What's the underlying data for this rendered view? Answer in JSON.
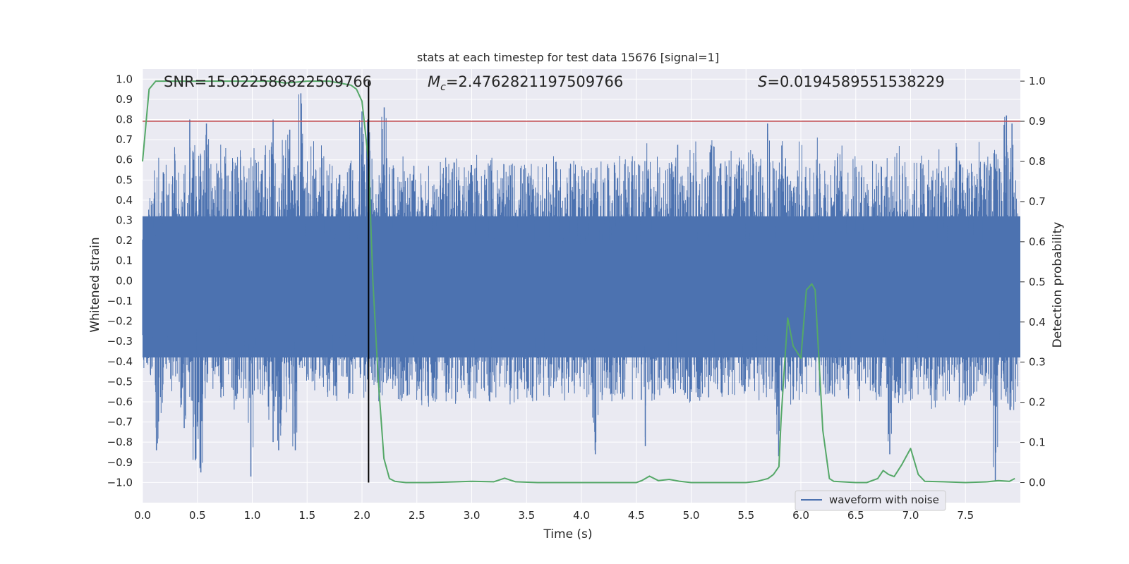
{
  "chart_data": {
    "type": "line",
    "title": "stats at each timestep for test data 15676 [signal=1]",
    "xlabel": "Time (s)",
    "ylabel": "Whitened strain",
    "y2label": "Detection probability",
    "xlim": [
      0.0,
      8.0
    ],
    "ylim": [
      -1.1,
      1.05
    ],
    "y2lim": [
      -0.05,
      1.03
    ],
    "xticks": [
      "0.0",
      "0.5",
      "1.0",
      "1.5",
      "2.0",
      "2.5",
      "3.0",
      "3.5",
      "4.0",
      "4.5",
      "5.0",
      "5.5",
      "6.0",
      "6.5",
      "7.0",
      "7.5"
    ],
    "yticks": [
      "1.0",
      "0.9",
      "0.8",
      "0.7",
      "0.6",
      "0.5",
      "0.4",
      "0.3",
      "0.2",
      "0.1",
      "0.0",
      "-0.1",
      "-0.2",
      "-0.3",
      "-0.4",
      "-0.5",
      "-0.6",
      "-0.7",
      "-0.8",
      "-0.9",
      "-1.0"
    ],
    "y2ticks": [
      "1.0",
      "0.9",
      "0.8",
      "0.7",
      "0.6",
      "0.5",
      "0.4",
      "0.3",
      "0.2",
      "0.1",
      "0.0"
    ],
    "annotations": {
      "snr": "SNR=15.022586822509766",
      "mc_prefix": "M",
      "mc_sub": "c",
      "mc_value": "=2.4762821197509766",
      "s_prefix": "S",
      "s_value": "=0.0194589551538229"
    },
    "threshold": 0.9,
    "marker_time": 2.06,
    "legend": [
      "waveform with noise"
    ],
    "legend_position": "lower-right",
    "colors": {
      "waveform": "#4c72b0",
      "probability": "#55a868",
      "threshold": "#c44e52",
      "marker": "#000000",
      "background": "#eaeaf2",
      "grid": "#ffffff"
    },
    "series": [
      {
        "name": "detection probability",
        "axis": "right",
        "x": [
          0.0,
          0.06,
          0.12,
          0.2,
          0.3,
          0.5,
          0.8,
          1.0,
          1.2,
          1.3,
          1.5,
          1.7,
          1.8,
          1.9,
          1.95,
          2.0,
          2.06,
          2.1,
          2.15,
          2.2,
          2.25,
          2.3,
          2.4,
          2.6,
          3.0,
          3.2,
          3.3,
          3.4,
          3.6,
          4.0,
          4.2,
          4.5,
          4.55,
          4.62,
          4.7,
          4.8,
          4.9,
          5.0,
          5.2,
          5.5,
          5.6,
          5.7,
          5.75,
          5.8,
          5.82,
          5.85,
          5.88,
          5.93,
          6.0,
          6.05,
          6.1,
          6.13,
          6.2,
          6.26,
          6.3,
          6.5,
          6.6,
          6.7,
          6.75,
          6.8,
          6.85,
          6.92,
          7.0,
          7.07,
          7.13,
          7.3,
          7.5,
          7.7,
          7.8,
          7.9,
          7.95
        ],
        "values": [
          0.8,
          0.98,
          1.0,
          1.0,
          1.0,
          1.0,
          1.0,
          1.0,
          1.0,
          0.995,
          1.0,
          1.0,
          0.995,
          0.99,
          0.98,
          0.95,
          0.8,
          0.5,
          0.25,
          0.06,
          0.01,
          0.003,
          0.0,
          0.0,
          0.003,
          0.002,
          0.011,
          0.002,
          0.0,
          0.0,
          0.0,
          0.0,
          0.005,
          0.016,
          0.005,
          0.008,
          0.003,
          0.0,
          0.0,
          0.0,
          0.003,
          0.01,
          0.02,
          0.04,
          0.16,
          0.29,
          0.41,
          0.34,
          0.31,
          0.48,
          0.495,
          0.48,
          0.13,
          0.01,
          0.003,
          0.0,
          0.0,
          0.01,
          0.03,
          0.02,
          0.015,
          0.045,
          0.085,
          0.02,
          0.003,
          0.002,
          0.0,
          0.002,
          0.005,
          0.003,
          0.01
        ]
      },
      {
        "name": "waveform with noise",
        "axis": "left",
        "envelope_upper": [
          0.32,
          0.45,
          0.62,
          0.55,
          0.58,
          0.7,
          0.55,
          0.68,
          0.8,
          0.7,
          0.65,
          0.78,
          0.6,
          0.6,
          0.72,
          0.55,
          0.66,
          0.7,
          0.58,
          0.62,
          0.66,
          0.55,
          0.68,
          0.8,
          0.6,
          0.72,
          0.75,
          0.62,
          0.93,
          0.6,
          0.72,
          0.58,
          0.7,
          0.62,
          0.6,
          0.55,
          0.55,
          0.6,
          0.62,
          0.84,
          0.8,
          0.66,
          0.58,
          0.86,
          0.6,
          0.6,
          0.62,
          0.55,
          0.58,
          0.6,
          0.55,
          0.62,
          0.55,
          0.6,
          0.66,
          0.58,
          0.62,
          0.64,
          0.55,
          0.6,
          0.7,
          0.6,
          0.62,
          0.6,
          0.55,
          0.58,
          0.6,
          0.62,
          0.6,
          0.58,
          0.62,
          0.6,
          0.58,
          0.62,
          0.6,
          0.6,
          0.62,
          0.6,
          0.55,
          0.62,
          0.6,
          0.62,
          0.6,
          0.58,
          0.6,
          0.7,
          0.62,
          0.6,
          0.62,
          0.6,
          0.72,
          0.6,
          0.62,
          0.66,
          0.6,
          0.62,
          0.7,
          0.6,
          0.66,
          0.7,
          0.62,
          0.6,
          0.72,
          0.6,
          0.62,
          0.7,
          0.6,
          0.62,
          0.58,
          0.66,
          0.6,
          0.62,
          0.78,
          0.6,
          0.62,
          0.72,
          0.6,
          0.66,
          0.7,
          0.62,
          0.6,
          0.72,
          0.66,
          0.6,
          0.62,
          0.68,
          0.6,
          0.62,
          0.7,
          0.6,
          0.58,
          0.62,
          0.6,
          0.66,
          0.62,
          0.64,
          0.7,
          0.62,
          0.6,
          0.62,
          0.66,
          0.6,
          0.62,
          0.7,
          0.6,
          0.64,
          0.72,
          0.6,
          0.62,
          0.72,
          0.7,
          0.6,
          0.72,
          0.66,
          0.7,
          0.82,
          0.78,
          0.62
        ],
        "envelope_lower": [
          -0.45,
          -0.5,
          -0.84,
          -0.7,
          -0.5,
          -0.55,
          -0.65,
          -0.73,
          -0.6,
          -0.89,
          -0.95,
          -0.6,
          -0.55,
          -0.5,
          -0.6,
          -0.55,
          -0.65,
          -0.6,
          -0.62,
          -0.97,
          -0.55,
          -0.6,
          -0.7,
          -0.8,
          -0.84,
          -0.7,
          -0.6,
          -0.84,
          -0.55,
          -0.5,
          -0.6,
          -0.55,
          -0.55,
          -0.65,
          -0.6,
          -0.55,
          -0.5,
          -0.6,
          -0.55,
          -0.58,
          -0.6,
          -0.55,
          -0.6,
          -0.58,
          -0.62,
          -0.55,
          -0.6,
          -0.62,
          -0.58,
          -0.6,
          -0.62,
          -0.68,
          -0.6,
          -0.55,
          -0.6,
          -0.6,
          -0.62,
          -0.6,
          -0.6,
          -0.62,
          -0.55,
          -0.6,
          -0.6,
          -0.62,
          -0.58,
          -0.6,
          -0.62,
          -0.6,
          -0.58,
          -0.6,
          -0.62,
          -0.6,
          -0.58,
          -0.6,
          -0.55,
          -0.6,
          -0.62,
          -0.6,
          -0.58,
          -0.6,
          -0.6,
          -0.86,
          -0.6,
          -0.62,
          -0.6,
          -0.58,
          -0.6,
          -0.62,
          -0.6,
          -0.6,
          -0.82,
          -0.6,
          -0.62,
          -0.6,
          -0.58,
          -0.6,
          -0.55,
          -0.6,
          -0.62,
          -0.6,
          -0.6,
          -0.62,
          -0.6,
          -0.6,
          -0.58,
          -0.62,
          -0.6,
          -0.6,
          -0.6,
          -0.62,
          -0.6,
          -0.58,
          -0.65,
          -0.6,
          -0.87,
          -0.6,
          -0.62,
          -0.6,
          -0.6,
          -0.62,
          -0.58,
          -0.6,
          -0.6,
          -0.62,
          -0.6,
          -0.6,
          -0.58,
          -0.6,
          -0.62,
          -0.6,
          -0.6,
          -0.62,
          -0.6,
          -0.58,
          -0.86,
          -0.6,
          -0.62,
          -0.6,
          -0.6,
          -0.62,
          -0.58,
          -0.6,
          -0.65,
          -0.6,
          -0.62,
          -0.6,
          -0.6,
          -0.62,
          -0.6,
          -0.6,
          -0.58,
          -0.62,
          -0.6,
          -0.99,
          -0.6,
          -0.62,
          -0.7,
          -0.6
        ]
      }
    ]
  }
}
